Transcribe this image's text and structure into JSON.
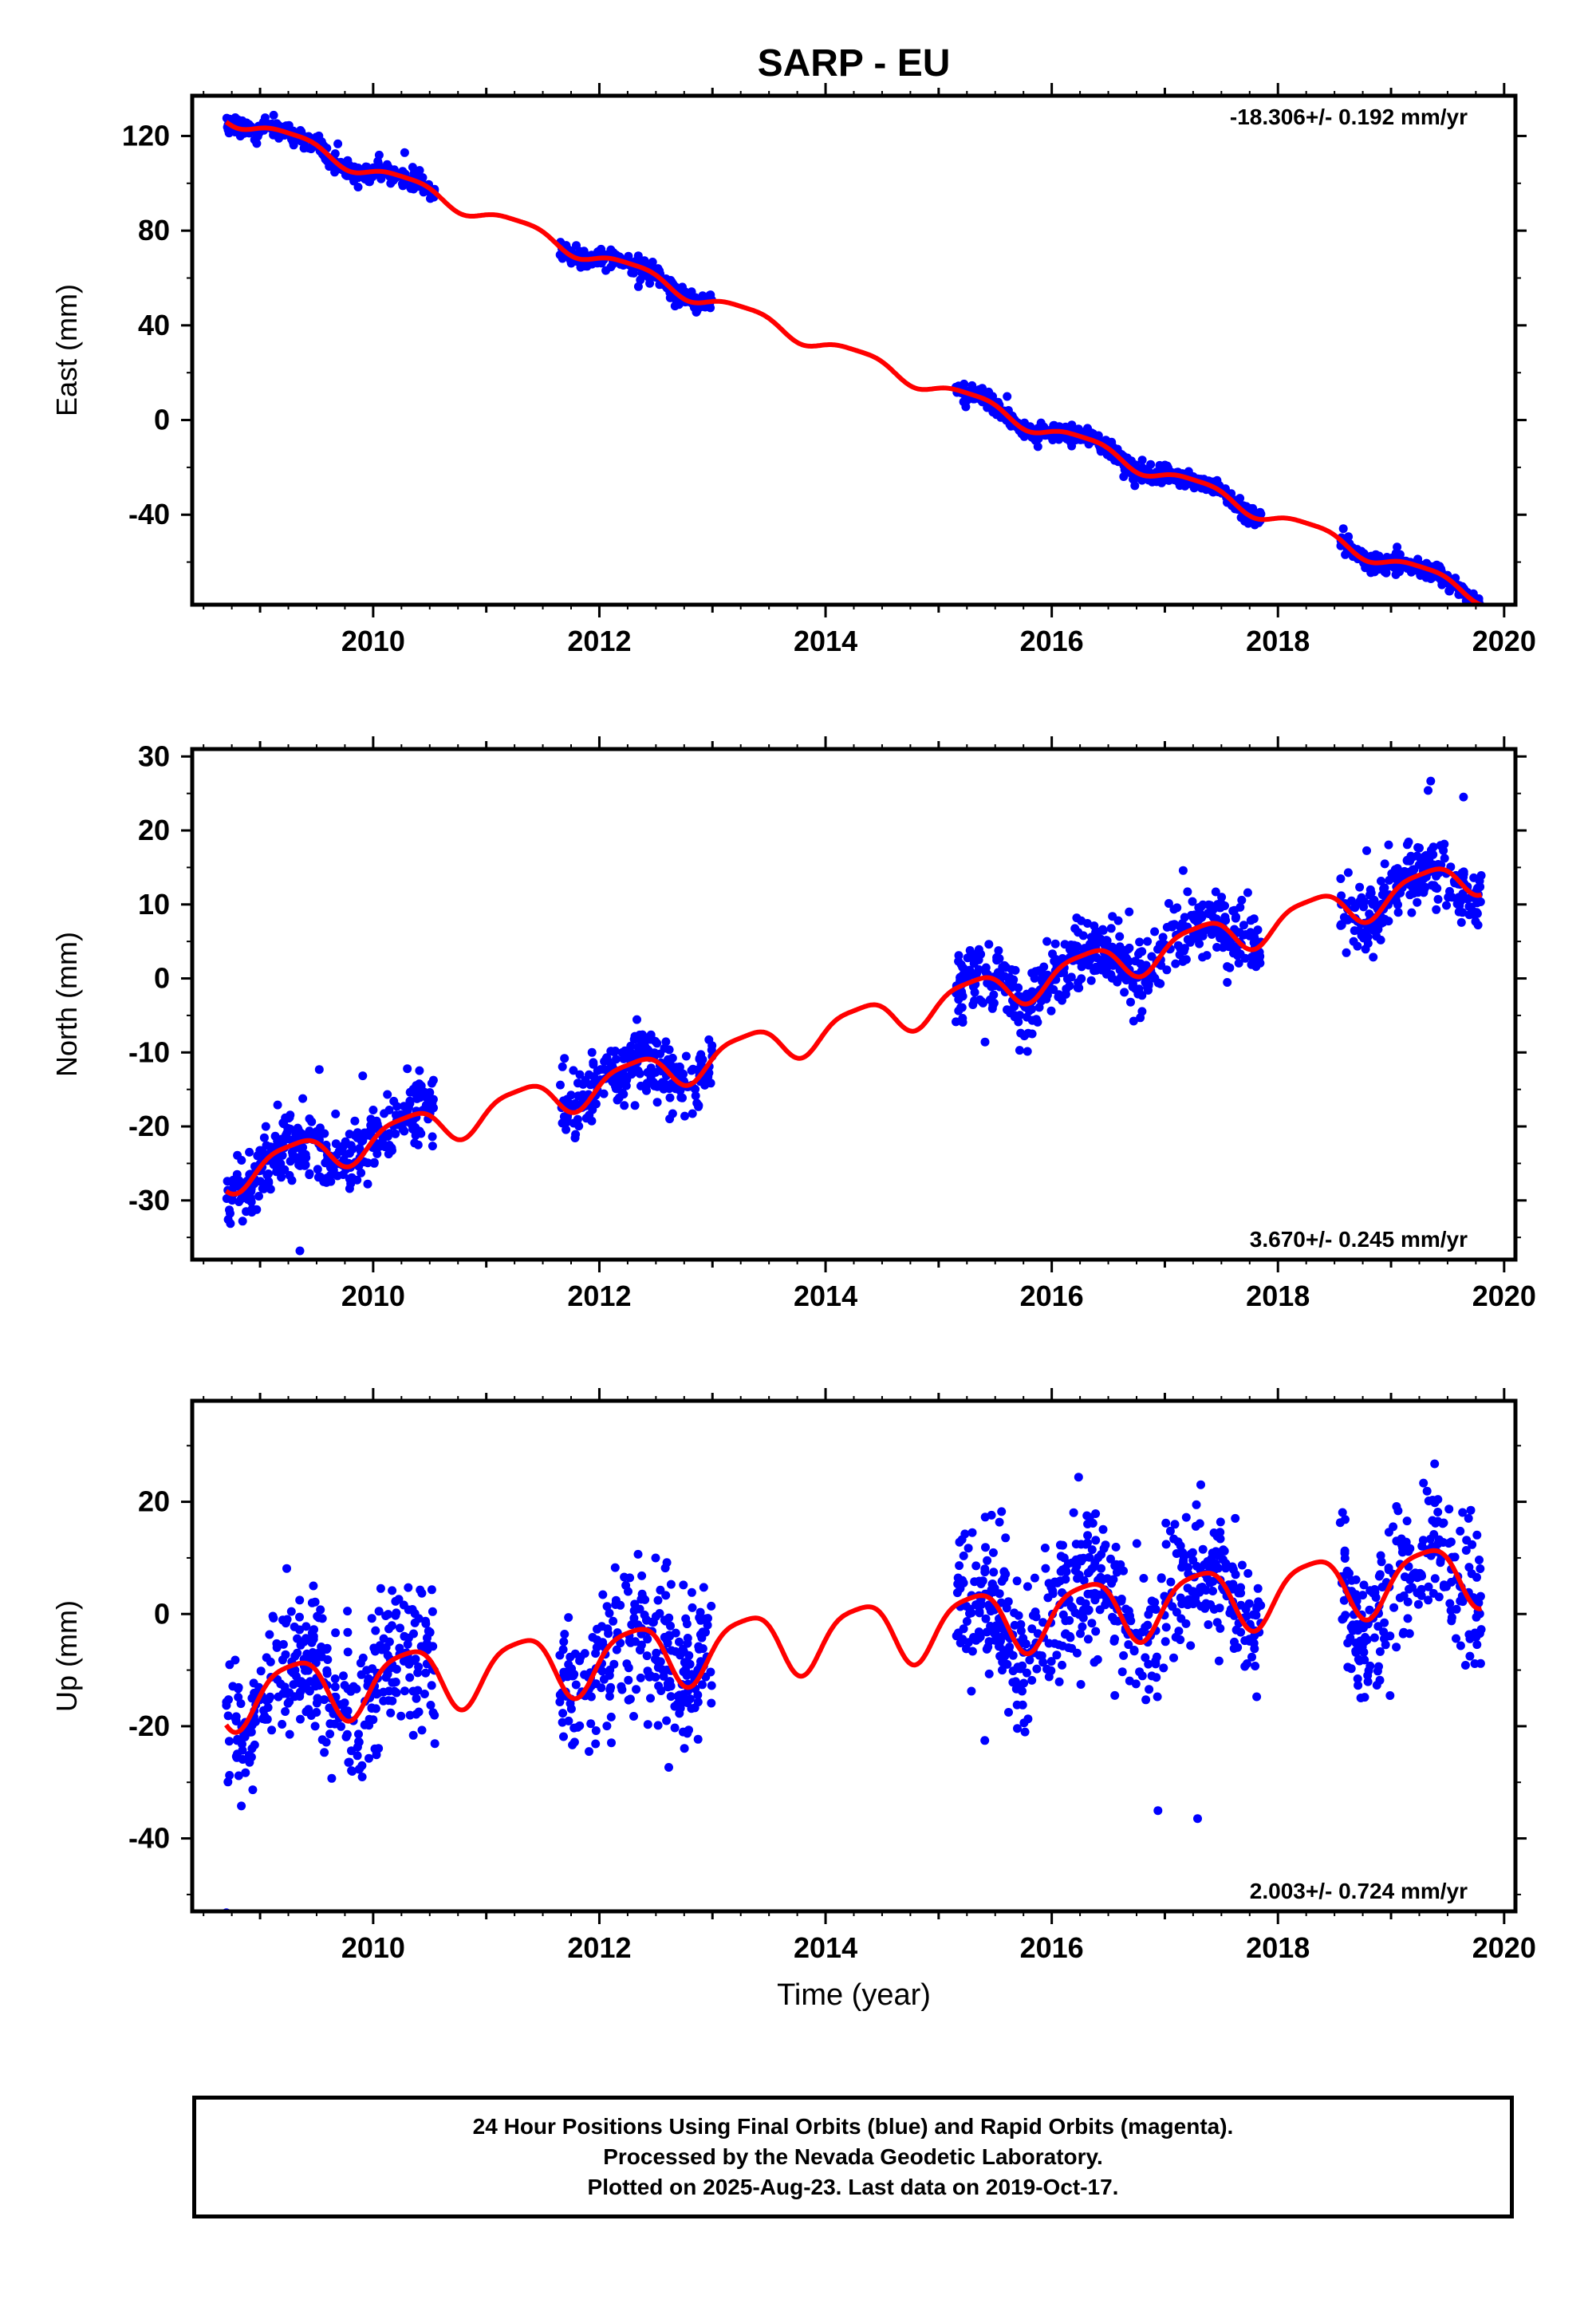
{
  "chart_data": {
    "type": "scatter",
    "title": "SARP - EU",
    "xlabel": "Time (year)",
    "xlim": [
      2008.4,
      2020.1
    ],
    "xticks": [
      2010,
      2012,
      2014,
      2016,
      2018,
      2020
    ],
    "point_color": "#0000ff",
    "line_color": "#ff0000",
    "panels": [
      {
        "name": "east",
        "ylabel": "East (mm)",
        "ylim": [
          -78,
          137
        ],
        "yticks": [
          120,
          80,
          40,
          0,
          -40
        ],
        "rate_label": "-18.306+/- 0.192 mm/yr",
        "rate_position": "top-right",
        "trend": {
          "slope": -18.306,
          "intercept_2014": 32,
          "annual_amp": 3.2,
          "semiannual_amp": 0.8
        },
        "noise": 1.8,
        "density": 120,
        "data_ranges": [
          [
            2008.7,
            2010.55
          ],
          [
            2011.65,
            2013.0
          ],
          [
            2015.15,
            2017.85
          ],
          [
            2018.55,
            2019.8
          ]
        ]
      },
      {
        "name": "north",
        "ylabel": "North (mm)",
        "ylim": [
          -38,
          31
        ],
        "yticks": [
          30,
          20,
          10,
          0,
          -10,
          -20,
          -30
        ],
        "rate_label": "3.670+/- 0.245 mm/yr",
        "rate_position": "bottom-right",
        "trend": {
          "slope": 3.67,
          "intercept_2014": -7,
          "annual_amp": 2.4,
          "semiannual_amp": 0.6
        },
        "noise": 2.3,
        "density": 120,
        "data_ranges": [
          [
            2008.7,
            2010.55
          ],
          [
            2011.65,
            2013.0
          ],
          [
            2015.15,
            2017.85
          ],
          [
            2018.55,
            2019.8
          ]
        ]
      },
      {
        "name": "up",
        "ylabel": "Up (mm)",
        "ylim": [
          -53,
          38
        ],
        "yticks": [
          20,
          0,
          -20,
          -40
        ],
        "rate_label": "2.003+/- 0.724 mm/yr",
        "rate_position": "bottom-right",
        "trend": {
          "slope": 2.003,
          "intercept_2014": -4,
          "annual_amp": 5.5,
          "semiannual_amp": 1.2
        },
        "noise": 6.5,
        "density": 120,
        "data_ranges": [
          [
            2008.7,
            2010.55
          ],
          [
            2011.65,
            2013.0
          ],
          [
            2015.15,
            2017.85
          ],
          [
            2018.55,
            2019.8
          ]
        ]
      }
    ]
  },
  "footer": {
    "line1": "24 Hour Positions Using Final Orbits (blue) and Rapid Orbits (magenta).",
    "line2": "Processed by the Nevada Geodetic Laboratory.",
    "line3": "Plotted on 2025-Aug-23. Last data on 2019-Oct-17."
  }
}
